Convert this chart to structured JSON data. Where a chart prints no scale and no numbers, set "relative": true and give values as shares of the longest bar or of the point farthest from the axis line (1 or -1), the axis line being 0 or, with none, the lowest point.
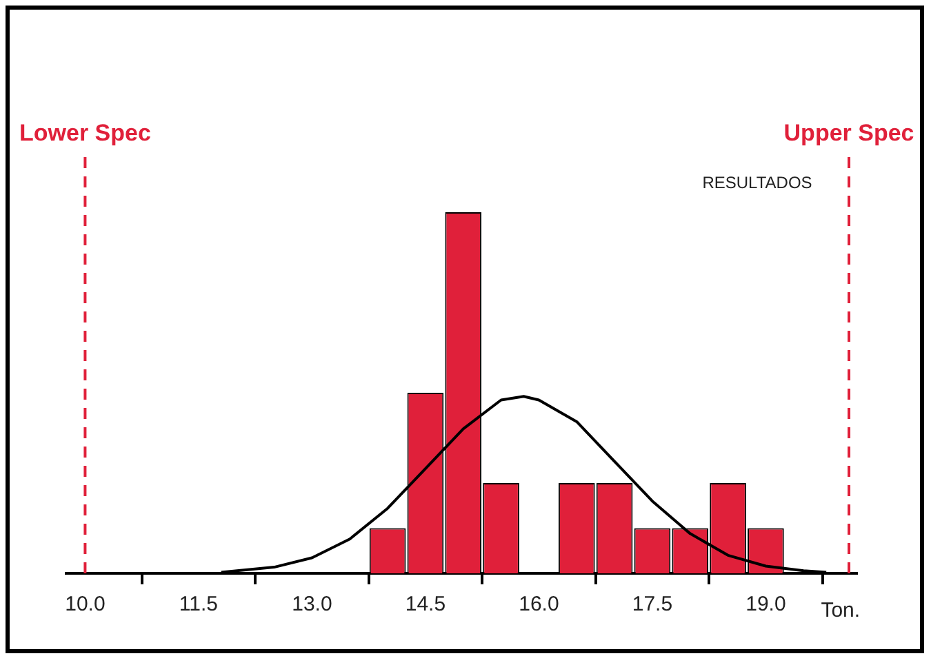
{
  "chart_data": {
    "type": "histogram",
    "relative": true,
    "xlabel": "Ton.",
    "bins": [
      13.75,
      14.25,
      14.75,
      15.25,
      15.75,
      16.25,
      16.75,
      17.25,
      17.75,
      18.25,
      18.75,
      19.25
    ],
    "values": [
      0.125,
      0.5,
      1,
      0.25,
      0,
      0.25,
      0.25,
      0.125,
      0.125,
      0.25,
      0.125
    ],
    "color": "#e0203a",
    "series": [
      {
        "type": "line",
        "color": "#000000",
        "x": [
          11.8,
          12.5,
          13,
          13.5,
          14,
          14.5,
          15,
          15.5,
          15.8,
          16,
          16.5,
          17,
          17.5,
          18,
          18.5,
          19,
          19.5,
          19.8
        ],
        "values": [
          0.003,
          0.017,
          0.043,
          0.095,
          0.18,
          0.29,
          0.4,
          0.48,
          0.49,
          0.48,
          0.42,
          0.31,
          0.2,
          0.11,
          0.05,
          0.02,
          0.007,
          0.003
        ]
      }
    ],
    "xlim": [
      9.75,
      20.2
    ],
    "xticks": [
      {
        "value": 10,
        "label": "10.0"
      },
      {
        "value": 11.5,
        "label": "11.5"
      },
      {
        "value": 13,
        "label": "13.0"
      },
      {
        "value": 14.5,
        "label": "14.5"
      },
      {
        "value": 16,
        "label": "16.0"
      },
      {
        "value": 17.5,
        "label": "17.5"
      },
      {
        "value": 19,
        "label": "19.0"
      }
    ],
    "ref_lines": [
      {
        "axis": "x",
        "value": 10,
        "label": "Lower Spec",
        "color": "#e0203a",
        "line_style": "dashed"
      },
      {
        "axis": "x",
        "value": 20.1,
        "label": "Upper Spec",
        "color": "#e0203a",
        "line_style": "dashed"
      }
    ],
    "annotations": [
      "RESULTADOS"
    ],
    "grid": false,
    "legend": false,
    "marker": "none"
  }
}
